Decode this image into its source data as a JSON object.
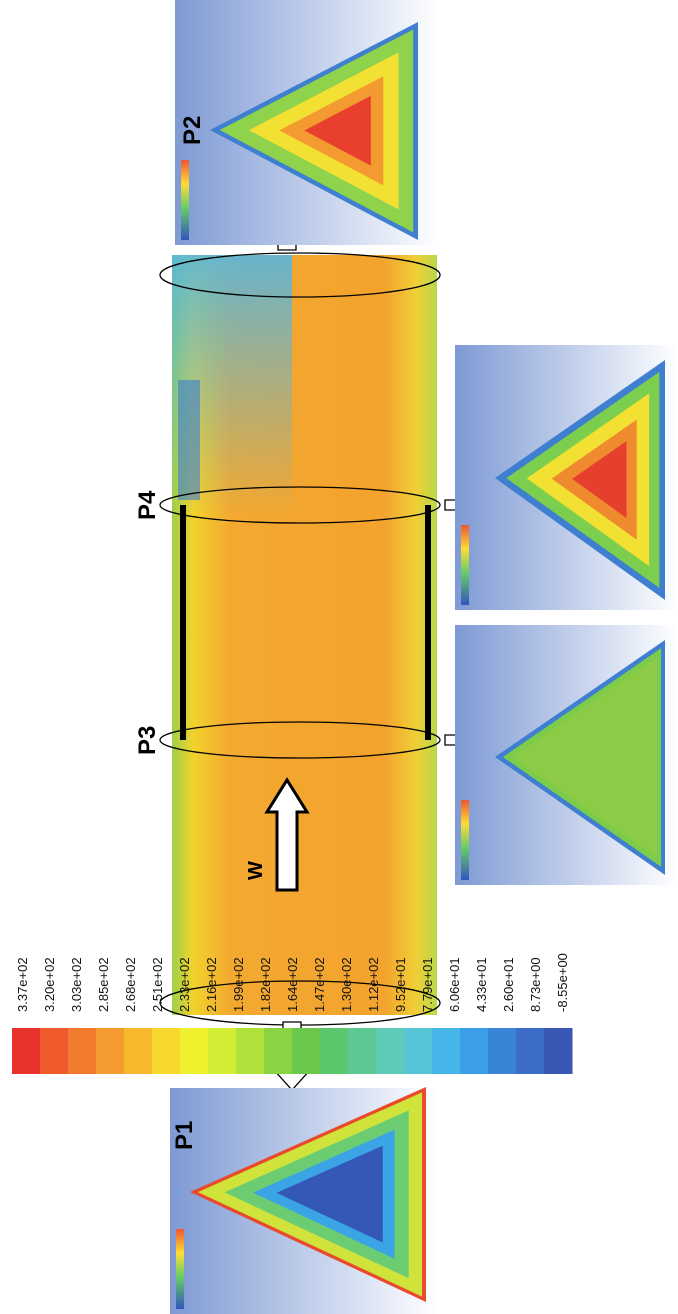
{
  "colorbar": {
    "labels": [
      "3.37e+02",
      "3.20e+02",
      "3.03e+02",
      "2.85e+02",
      "2.68e+02",
      "2.51e+02",
      "2.33e+02",
      "2.16e+02",
      "1.99e+02",
      "1.82e+02",
      "1.64e+02",
      "1.47e+02",
      "1.30e+02",
      "1.12e+02",
      "9.52e+01",
      "7.79e+01",
      "6.06e+01",
      "4.33e+01",
      "2.60e+01",
      "8.73e+00",
      "-8.55e+00"
    ]
  },
  "sections": [
    {
      "label": "P1"
    },
    {
      "label": "P2"
    },
    {
      "label": "P3"
    },
    {
      "label": "P4"
    }
  ],
  "flow_label": "W"
}
